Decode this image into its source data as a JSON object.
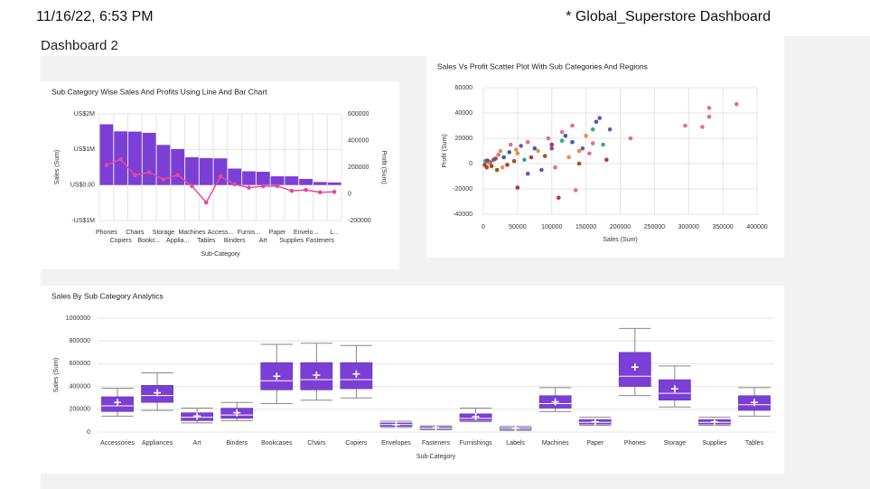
{
  "header": {
    "timestamp": "11/16/22, 6:53 PM",
    "title": "* Global_Superstore Dashboard",
    "dashboard": "Dashboard 2"
  },
  "chart_data": [
    {
      "type": "bar_line",
      "title": "Sub Category Wise Sales And Profits Using Line And Bar Chart",
      "x_label": "Sub-Category",
      "y_label": "Sales (Sum)",
      "y2_label": "Profit (Sum)",
      "categories": [
        "Phones",
        "Copiers",
        "Chairs",
        "Bookc...",
        "Storage",
        "Applia...",
        "Machines",
        "Tables",
        "Access...",
        "Binders",
        "Furnis...",
        "Art",
        "Paper",
        "Supplies",
        "Envelo...",
        "Fasteners",
        "L..."
      ],
      "series": [
        {
          "type": "bar",
          "color": "#7b3fd6",
          "values": [
            1706824,
            1509436,
            1501682,
            1466572,
            1127086,
            1011064,
            779060,
            757042,
            749237,
            461912,
            385578,
            372092,
            244292,
            243075,
            170904,
            83242,
            73404
          ]
        },
        {
          "type": "line",
          "axis": "y2",
          "color": "#e8479a",
          "values": [
            216717,
            258568,
            140396,
            161924,
            108461,
            141681,
            58868,
            -64083,
            129626,
            72449,
            46967,
            57954,
            59208,
            22584,
            29601,
            11525,
            15010
          ]
        }
      ],
      "ylim": [
        -1000000,
        2000000
      ],
      "yticks": [
        {
          "value": -1000000,
          "label": "-US$1M"
        },
        {
          "value": 0,
          "label": "US$0.00"
        },
        {
          "value": 1000000,
          "label": "US$1M"
        },
        {
          "value": 2000000,
          "label": "US$2M"
        }
      ],
      "y2lim": [
        -200000,
        600000
      ],
      "y2ticks": [
        -200000,
        0,
        200000,
        400000,
        600000
      ],
      "grid": true
    },
    {
      "type": "scatter",
      "title": "Sales Vs Profit Scatter Plot With Sub Categories And Regions",
      "x_label": "Sales (Sum)",
      "y_label": "Profit (Sum)",
      "x": [
        370000,
        330000,
        330000,
        320000,
        295000,
        215000,
        185000,
        180000,
        175000,
        170000,
        165000,
        160000,
        150000,
        160000,
        145000,
        135000,
        110000,
        140000,
        130000,
        120000,
        115000,
        100000,
        95000,
        90000,
        80000,
        75000,
        70000,
        65000,
        60000,
        55000,
        50000,
        45000,
        40000,
        35000,
        30000,
        25000,
        20000,
        15000,
        12000,
        10000,
        8000,
        5000,
        3000,
        2000,
        50000,
        85000,
        105000,
        125000,
        140000,
        155000,
        130000,
        115000,
        100000,
        65000,
        28000,
        18000,
        22000,
        6000,
        38000,
        48000
      ],
      "values": [
        47000,
        44000,
        37000,
        29000,
        30000,
        20000,
        27000,
        3000,
        15000,
        36000,
        33000,
        27000,
        22000,
        16000,
        12000,
        -21000,
        -27000,
        10000,
        30000,
        22000,
        18000,
        12000,
        20000,
        6000,
        10000,
        12000,
        5000,
        17000,
        3000,
        14000,
        8000,
        2000,
        15000,
        -1000,
        5000,
        10000,
        -5000,
        3000,
        -2000,
        1000,
        500,
        -3000,
        2000,
        -1000,
        -19000,
        -5000,
        -3000,
        5000,
        0,
        8000,
        17000,
        25000,
        15000,
        -8000,
        -3000,
        4000,
        7000,
        2500,
        9000,
        11000
      ],
      "colors": [
        "#e55a8a",
        "#e55a8a",
        "#e55a8a",
        "#e55a8a",
        "#e55a8a",
        "#e55a8a",
        "#6a3d9a",
        "#b22222",
        "#1f9e89",
        "#6a3d9a",
        "#2f4b9a",
        "#1f9e89",
        "#d98a3a",
        "#e55a8a",
        "#6a3d9a",
        "#e55a8a",
        "#b22222",
        "#d98a3a",
        "#e55a8a",
        "#2f4b9a",
        "#1f9e89",
        "#6a3d9a",
        "#e55a8a",
        "#8b4513",
        "#d98a3a",
        "#2f4b9a",
        "#b22222",
        "#e55a8a",
        "#1f9e89",
        "#6a3d9a",
        "#d98a3a",
        "#8b4513",
        "#e55a8a",
        "#b22222",
        "#2f4b9a",
        "#d98a3a",
        "#8b4513",
        "#6a3d9a",
        "#b22222",
        "#8b4513",
        "#d98a3a",
        "#8b4513",
        "#1f9e89",
        "#b22222",
        "#b22222",
        "#6a3d9a",
        "#e55a8a",
        "#d98a3a",
        "#8b4513",
        "#e55a8a",
        "#2f4b9a",
        "#e55a8a",
        "#b22222",
        "#6a3d9a",
        "#d98a3a",
        "#8b4513",
        "#e55a8a",
        "#6a3d9a",
        "#2f4b9a",
        "#d98a3a"
      ],
      "xlim": [
        0,
        400000
      ],
      "xticks": [
        0,
        50000,
        100000,
        150000,
        200000,
        250000,
        300000,
        350000,
        400000
      ],
      "ylim": [
        -40000,
        60000
      ],
      "yticks": [
        -40000,
        -20000,
        0,
        20000,
        40000,
        60000
      ],
      "grid": true
    },
    {
      "type": "box",
      "title": "Sales By Sub Category Analytics",
      "x_label": "Sub-Category",
      "y_label": "Sales (Sum)",
      "color": "#7b3fd6",
      "categories": [
        "Accessories",
        "Appliances",
        "Art",
        "Binders",
        "Bookcases",
        "Chairs",
        "Copiers",
        "Envelopes",
        "Fasteners",
        "Furnishings",
        "Labels",
        "Machines",
        "Paper",
        "Phones",
        "Storage",
        "Supplies",
        "Tables"
      ],
      "min": [
        140000,
        190000,
        80000,
        100000,
        250000,
        280000,
        300000,
        40000,
        20000,
        90000,
        15000,
        180000,
        60000,
        320000,
        220000,
        60000,
        140000
      ],
      "q1": [
        180000,
        260000,
        100000,
        120000,
        370000,
        370000,
        380000,
        50000,
        28000,
        100000,
        22000,
        210000,
        70000,
        400000,
        280000,
        70000,
        190000
      ],
      "median": [
        230000,
        320000,
        130000,
        150000,
        450000,
        460000,
        460000,
        65000,
        35000,
        120000,
        30000,
        250000,
        85000,
        490000,
        340000,
        85000,
        240000
      ],
      "q3": [
        310000,
        410000,
        170000,
        210000,
        610000,
        610000,
        610000,
        80000,
        45000,
        160000,
        38000,
        320000,
        110000,
        700000,
        460000,
        110000,
        320000
      ],
      "max": [
        385000,
        520000,
        210000,
        260000,
        770000,
        780000,
        760000,
        95000,
        55000,
        210000,
        50000,
        390000,
        130000,
        910000,
        580000,
        130000,
        390000
      ],
      "mean": [
        260000,
        345000,
        140000,
        170000,
        490000,
        500000,
        510000,
        65000,
        37000,
        135000,
        30000,
        265000,
        90000,
        570000,
        380000,
        90000,
        260000
      ],
      "ylim": [
        0,
        1000000
      ],
      "yticks": [
        0,
        200000,
        400000,
        600000,
        800000,
        1000000
      ],
      "grid": true
    }
  ]
}
